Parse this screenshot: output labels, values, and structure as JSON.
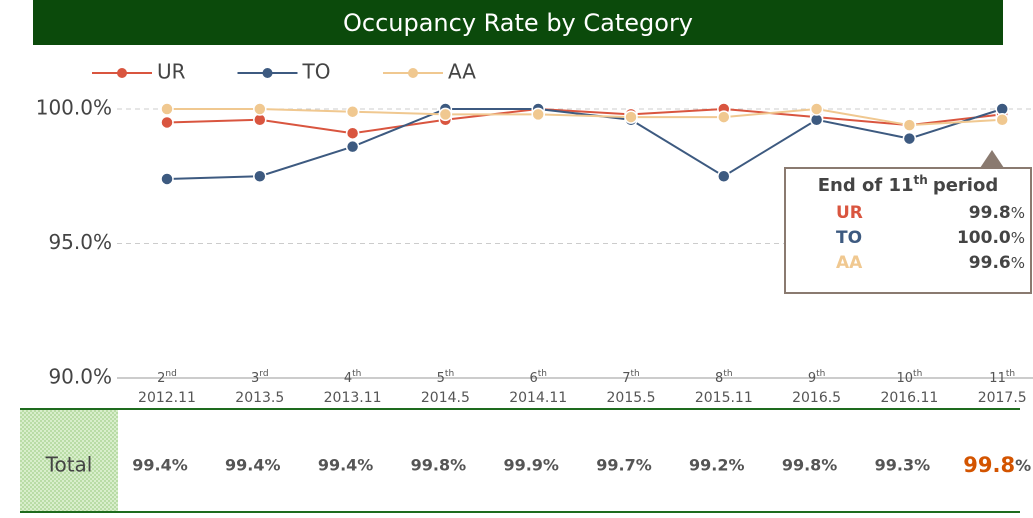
{
  "chart_data": {
    "type": "line",
    "title": "Occupancy Rate by Category",
    "categories": [
      {
        "ordinal": "2",
        "suffix": "nd",
        "date": "2012.11"
      },
      {
        "ordinal": "3",
        "suffix": "rd",
        "date": "2013.5"
      },
      {
        "ordinal": "4",
        "suffix": "th",
        "date": "2013.11"
      },
      {
        "ordinal": "5",
        "suffix": "th",
        "date": "2014.5"
      },
      {
        "ordinal": "6",
        "suffix": "th",
        "date": "2014.11"
      },
      {
        "ordinal": "7",
        "suffix": "th",
        "date": "2015.5"
      },
      {
        "ordinal": "8",
        "suffix": "th",
        "date": "2015.11"
      },
      {
        "ordinal": "9",
        "suffix": "th",
        "date": "2016.5"
      },
      {
        "ordinal": "10",
        "suffix": "th",
        "date": "2016.11"
      },
      {
        "ordinal": "11",
        "suffix": "th",
        "date": "2017.5"
      }
    ],
    "series": [
      {
        "name": "UR",
        "color": "#d9553f",
        "values": [
          99.5,
          99.6,
          99.1,
          99.6,
          100.0,
          99.8,
          100.0,
          99.7,
          99.4,
          99.8
        ]
      },
      {
        "name": "TO",
        "color": "#3d5a80",
        "values": [
          97.4,
          97.5,
          98.6,
          100.0,
          100.0,
          99.6,
          97.5,
          99.6,
          98.9,
          100.0
        ]
      },
      {
        "name": "AA",
        "color": "#f0c890",
        "values": [
          100.0,
          100.0,
          99.9,
          99.8,
          99.8,
          99.7,
          99.7,
          100.0,
          99.4,
          99.6
        ]
      }
    ],
    "ylim": [
      90,
      102
    ],
    "yticks": [
      {
        "value": 90,
        "label": "90.0%"
      },
      {
        "value": 95,
        "label": "95.0%"
      },
      {
        "value": 100,
        "label": "100.0%"
      }
    ],
    "grid": true,
    "callout": {
      "title": "End of 11",
      "title_sup": "th",
      "title_end": "period",
      "unit": "%",
      "rows": [
        {
          "name": "UR",
          "value": "99.8"
        },
        {
          "name": "TO",
          "value": "100.0"
        },
        {
          "name": "AA",
          "value": "99.6"
        }
      ]
    },
    "table": {
      "label": "Total",
      "cells": [
        "99.4%",
        "99.4%",
        "99.4%",
        "99.8%",
        "99.9%",
        "99.7%",
        "99.2%",
        "99.8%",
        "99.3%"
      ],
      "highlight": {
        "value": "99.8",
        "unit": "%"
      }
    }
  }
}
